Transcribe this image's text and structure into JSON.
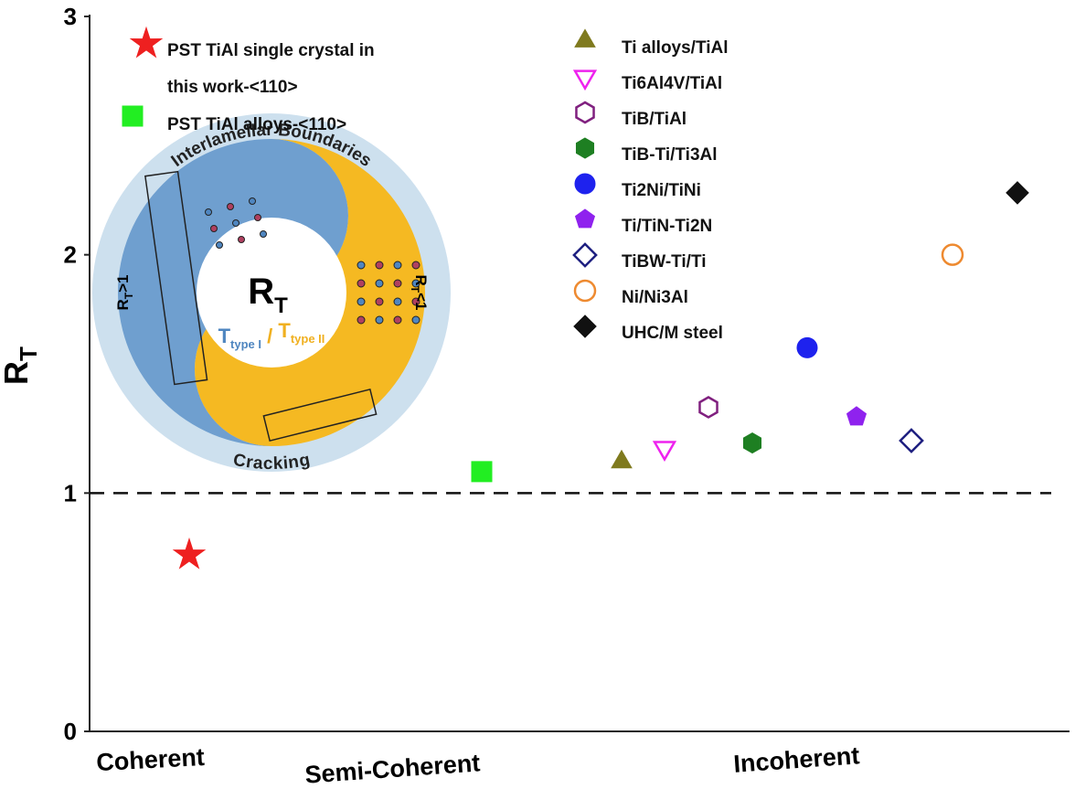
{
  "chart_data": {
    "type": "scatter",
    "y_label": "R",
    "y_label_sub": "T",
    "ylim": [
      0,
      3
    ],
    "yticks": [
      0,
      1,
      2,
      3
    ],
    "ref_line": 1,
    "x_labels": [
      "Coherent",
      "Semi-Coherent",
      "Incoherent"
    ],
    "series": [
      {
        "name": "PST TiAl single crystal in this work-<110>",
        "color": "#ee2020",
        "marker": "star",
        "filled": true,
        "values": [
          0.74
        ]
      },
      {
        "name": "PST TiAl alloys-<110>",
        "color": "#22ee22",
        "marker": "square",
        "filled": true,
        "values": [
          1.09
        ]
      },
      {
        "name": "Ti alloys/TiAl",
        "color": "#7f7a1e",
        "marker": "triangle",
        "filled": true,
        "values": [
          1.13
        ]
      },
      {
        "name": "Ti6Al4V/TiAl",
        "color": "#ee22ee",
        "marker": "triangle-down",
        "filled": false,
        "values": [
          1.19
        ]
      },
      {
        "name": "TiB/TiAl",
        "color": "#80207f",
        "marker": "hexagon",
        "filled": false,
        "values": [
          1.36
        ]
      },
      {
        "name": "TiB-Ti/Ti3Al",
        "color": "#1e7f22",
        "marker": "hexagon",
        "filled": true,
        "values": [
          1.21
        ]
      },
      {
        "name": "Ti2Ni/TiNi",
        "color": "#1e22ee",
        "marker": "circle",
        "filled": true,
        "values": [
          1.61
        ]
      },
      {
        "name": "Ti/TiN-Ti2N",
        "color": "#8f22ee",
        "marker": "pentagon",
        "filled": true,
        "values": [
          1.32
        ]
      },
      {
        "name": "TiBW-Ti/Ti",
        "color": "#1e1f80",
        "marker": "diamond",
        "filled": false,
        "values": [
          1.22
        ]
      },
      {
        "name": "Ni/Ni3Al",
        "color": "#ee8a30",
        "marker": "circle",
        "filled": false,
        "values": [
          2.0
        ]
      },
      {
        "name": "UHC/M steel",
        "color": "#111111",
        "marker": "diamond",
        "filled": true,
        "values": [
          2.26
        ]
      }
    ],
    "inset": {
      "center_main": "R",
      "center_sub": "T",
      "ratio": [
        {
          "main": "T",
          "sub": "type I",
          "color": "#4f86c0"
        },
        {
          "text": " / ",
          "color": "#f0b020"
        },
        {
          "main": "T",
          "sub": "type II",
          "color": "#f0b020"
        }
      ],
      "top_arc": "Interlamellar Boundaries",
      "bottom_arc": "Cracking",
      "left_label": {
        "main": "R",
        "sub": "T",
        "rest": ">1"
      },
      "right_label": {
        "main": "R",
        "sub": "T",
        "rest": "<1"
      }
    }
  }
}
